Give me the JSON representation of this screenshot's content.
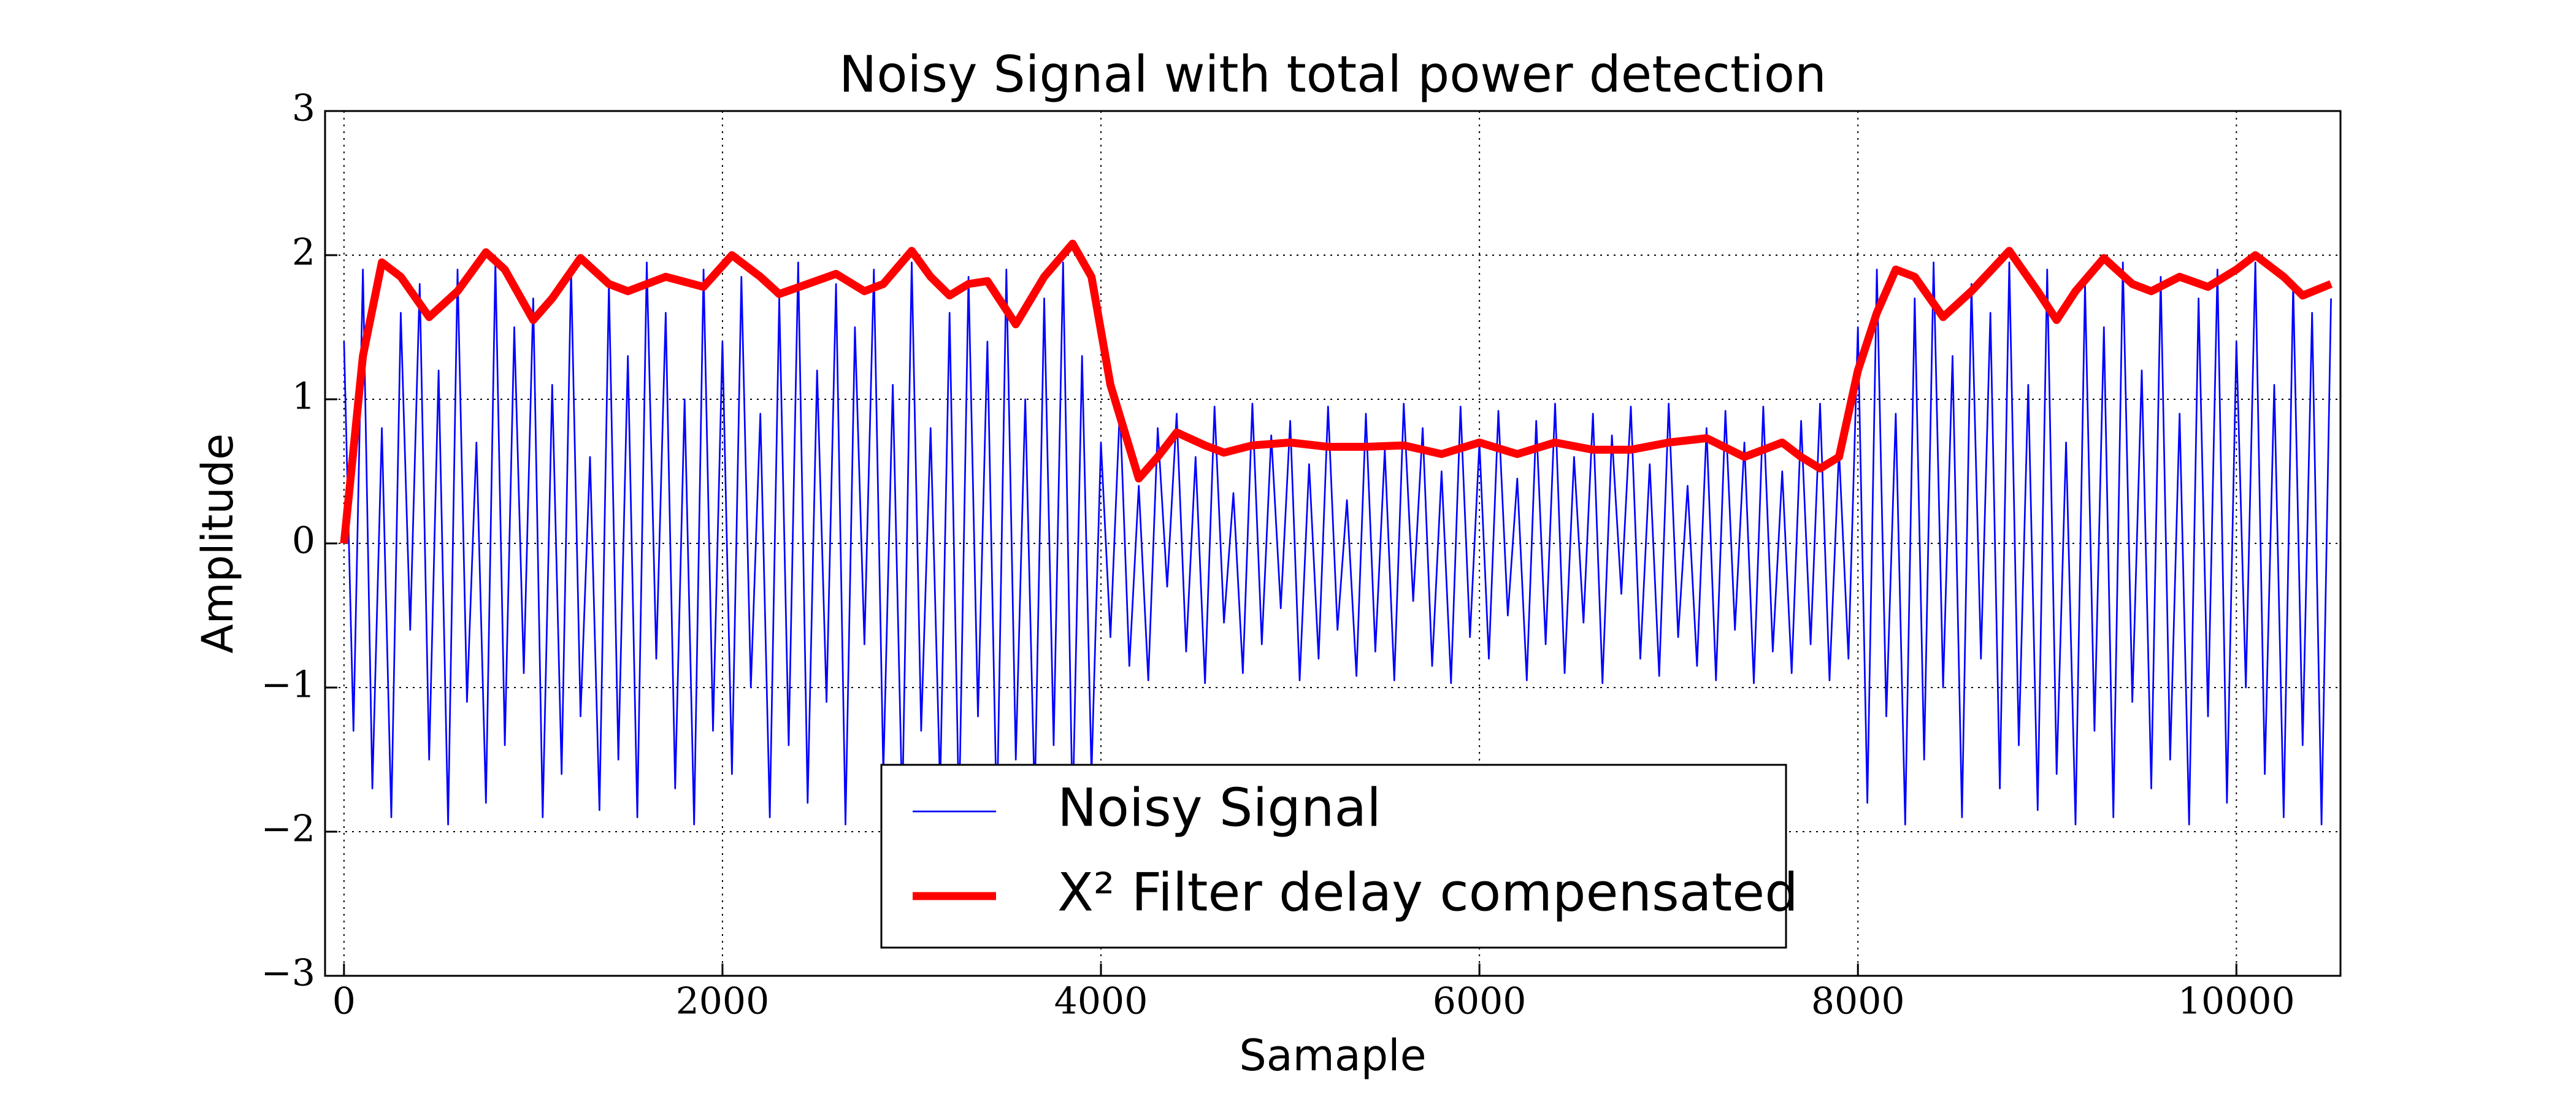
{
  "chart_data": {
    "type": "line",
    "title": "Noisy Signal with total power detection",
    "xlabel": "Samaple",
    "ylabel": "Amplitude",
    "xlim": [
      -100,
      10550
    ],
    "ylim": [
      -3,
      3
    ],
    "xticks": [
      0,
      2000,
      4000,
      6000,
      8000,
      10000
    ],
    "yticks": [
      {
        "value": -3,
        "label": "−3"
      },
      {
        "value": -2,
        "label": "−2"
      },
      {
        "value": -1,
        "label": "−1"
      },
      0,
      1,
      2,
      3
    ],
    "grid": true,
    "legend": "lower center",
    "series": [
      {
        "name": "Noisy Signal",
        "color": "#0000ff",
        "x": [
          0,
          50,
          100,
          150,
          200,
          250,
          300,
          350,
          400,
          450,
          500,
          550,
          600,
          650,
          700,
          750,
          800,
          850,
          900,
          950,
          1000,
          1050,
          1100,
          1150,
          1200,
          1250,
          1300,
          1350,
          1400,
          1450,
          1500,
          1550,
          1600,
          1650,
          1700,
          1750,
          1800,
          1850,
          1900,
          1950,
          2000,
          2050,
          2100,
          2150,
          2200,
          2250,
          2300,
          2350,
          2400,
          2450,
          2500,
          2550,
          2600,
          2650,
          2700,
          2750,
          2800,
          2850,
          2900,
          2950,
          3000,
          3050,
          3100,
          3150,
          3200,
          3250,
          3300,
          3350,
          3400,
          3450,
          3500,
          3550,
          3600,
          3650,
          3700,
          3750,
          3800,
          3850,
          3900,
          3950,
          4000,
          4050,
          4100,
          4150,
          4200,
          4250,
          4300,
          4350,
          4400,
          4450,
          4500,
          4550,
          4600,
          4650,
          4700,
          4750,
          4800,
          4850,
          4900,
          4950,
          5000,
          5050,
          5100,
          5150,
          5200,
          5250,
          5300,
          5350,
          5400,
          5450,
          5500,
          5550,
          5600,
          5650,
          5700,
          5750,
          5800,
          5850,
          5900,
          5950,
          6000,
          6050,
          6100,
          6150,
          6200,
          6250,
          6300,
          6350,
          6400,
          6450,
          6500,
          6550,
          6600,
          6650,
          6700,
          6750,
          6800,
          6850,
          6900,
          6950,
          7000,
          7050,
          7100,
          7150,
          7200,
          7250,
          7300,
          7350,
          7400,
          7450,
          7500,
          7550,
          7600,
          7650,
          7700,
          7750,
          7800,
          7850,
          7900,
          7950,
          8000,
          8050,
          8100,
          8150,
          8200,
          8250,
          8300,
          8350,
          8400,
          8450,
          8500,
          8550,
          8600,
          8650,
          8700,
          8750,
          8800,
          8850,
          8900,
          8950,
          9000,
          9050,
          9100,
          9150,
          9200,
          9250,
          9300,
          9350,
          9400,
          9450,
          9500,
          9550,
          9600,
          9650,
          9700,
          9750,
          9800,
          9850,
          9900,
          9950,
          10000,
          10050,
          10100,
          10150,
          10200,
          10250,
          10300,
          10350,
          10400,
          10450,
          10500
        ],
        "values": [
          1.4,
          -1.3,
          1.9,
          -1.7,
          0.8,
          -1.9,
          1.6,
          -0.6,
          1.8,
          -1.5,
          1.2,
          -1.95,
          1.9,
          -1.1,
          0.7,
          -1.8,
          1.95,
          -1.4,
          1.5,
          -0.9,
          1.7,
          -1.9,
          1.1,
          -1.6,
          1.9,
          -1.2,
          0.6,
          -1.85,
          1.8,
          -1.5,
          1.3,
          -1.9,
          1.95,
          -0.8,
          1.6,
          -1.7,
          1.0,
          -1.95,
          1.9,
          -1.3,
          1.4,
          -1.6,
          1.85,
          -1.0,
          0.9,
          -1.9,
          1.7,
          -1.4,
          1.95,
          -1.8,
          1.2,
          -1.1,
          1.8,
          -1.95,
          1.5,
          -0.7,
          1.9,
          -1.6,
          1.1,
          -1.85,
          1.95,
          -1.3,
          0.8,
          -1.7,
          1.6,
          -1.9,
          1.85,
          -1.2,
          1.4,
          -1.95,
          1.9,
          -1.5,
          1.0,
          -1.8,
          1.7,
          -1.4,
          1.95,
          -1.9,
          1.3,
          -1.6,
          0.7,
          -0.65,
          0.95,
          -0.85,
          0.4,
          -0.95,
          0.8,
          -0.3,
          0.9,
          -0.75,
          0.6,
          -0.97,
          0.95,
          -0.55,
          0.35,
          -0.9,
          0.97,
          -0.7,
          0.75,
          -0.45,
          0.85,
          -0.95,
          0.55,
          -0.8,
          0.95,
          -0.6,
          0.3,
          -0.92,
          0.9,
          -0.75,
          0.65,
          -0.95,
          0.97,
          -0.4,
          0.8,
          -0.85,
          0.5,
          -0.97,
          0.95,
          -0.65,
          0.7,
          -0.8,
          0.92,
          -0.5,
          0.45,
          -0.95,
          0.85,
          -0.7,
          0.97,
          -0.9,
          0.6,
          -0.55,
          0.9,
          -0.97,
          0.75,
          -0.35,
          0.95,
          -0.8,
          0.55,
          -0.92,
          0.97,
          -0.65,
          0.4,
          -0.85,
          0.8,
          -0.95,
          0.92,
          -0.6,
          0.7,
          -0.97,
          0.95,
          -0.75,
          0.5,
          -0.9,
          0.85,
          -0.7,
          0.97,
          -0.95,
          0.65,
          -0.8,
          1.5,
          -1.8,
          1.9,
          -1.2,
          0.9,
          -1.95,
          1.7,
          -1.5,
          1.95,
          -1.0,
          1.3,
          -1.9,
          1.8,
          -0.8,
          1.6,
          -1.7,
          1.95,
          -1.4,
          1.1,
          -1.85,
          1.9,
          -1.6,
          0.7,
          -1.95,
          1.8,
          -1.3,
          1.5,
          -1.9,
          1.95,
          -1.1,
          1.2,
          -1.7,
          1.85,
          -1.5,
          0.9,
          -1.95,
          1.7,
          -1.2,
          1.9,
          -1.8,
          1.4,
          -1.0,
          1.95,
          -1.6,
          1.1,
          -1.9,
          1.8,
          -1.4,
          1.6,
          -1.95,
          1.7
        ]
      },
      {
        "name": "X² Filter delay compensated",
        "color": "#ff0000",
        "x": [
          0,
          100,
          200,
          300,
          450,
          600,
          750,
          850,
          1000,
          1100,
          1250,
          1400,
          1500,
          1700,
          1900,
          2050,
          2200,
          2300,
          2450,
          2600,
          2750,
          2850,
          3000,
          3100,
          3200,
          3300,
          3400,
          3550,
          3700,
          3850,
          3950,
          4050,
          4200,
          4300,
          4400,
          4550,
          4650,
          4800,
          5000,
          5200,
          5400,
          5600,
          5800,
          6000,
          6200,
          6400,
          6600,
          6800,
          7000,
          7200,
          7400,
          7500,
          7600,
          7700,
          7800,
          7900,
          8000,
          8100,
          8200,
          8300,
          8450,
          8600,
          8800,
          8950,
          9050,
          9150,
          9300,
          9450,
          9550,
          9700,
          9850,
          10000,
          10100,
          10250,
          10350,
          10500
        ],
        "values": [
          0,
          1.3,
          1.95,
          1.85,
          1.57,
          1.75,
          2.02,
          1.9,
          1.55,
          1.7,
          1.98,
          1.8,
          1.75,
          1.85,
          1.78,
          2.0,
          1.85,
          1.73,
          1.8,
          1.87,
          1.75,
          1.8,
          2.03,
          1.85,
          1.72,
          1.8,
          1.82,
          1.52,
          1.85,
          2.08,
          1.85,
          1.1,
          0.45,
          0.6,
          0.77,
          0.68,
          0.63,
          0.68,
          0.7,
          0.67,
          0.67,
          0.68,
          0.62,
          0.7,
          0.62,
          0.7,
          0.65,
          0.65,
          0.7,
          0.73,
          0.6,
          0.65,
          0.7,
          0.6,
          0.52,
          0.6,
          1.2,
          1.6,
          1.9,
          1.85,
          1.57,
          1.75,
          2.03,
          1.75,
          1.55,
          1.75,
          1.98,
          1.8,
          1.75,
          1.85,
          1.78,
          1.9,
          2.0,
          1.85,
          1.72,
          1.8
        ]
      }
    ]
  }
}
